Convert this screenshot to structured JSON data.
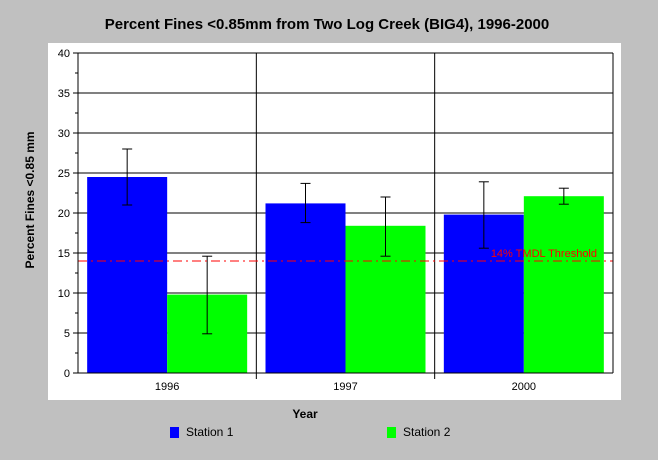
{
  "chart_data": {
    "type": "bar",
    "title": "Percent Fines <0.85mm from Two Log Creek (BIG4), 1996-2000",
    "xlabel": "Year",
    "ylabel": "Percent Fines <0.85 mm",
    "categories": [
      "1996",
      "1997",
      "2000"
    ],
    "ylim": [
      0,
      40
    ],
    "yticks": [
      "0",
      "5",
      "10",
      "15",
      "20",
      "25",
      "30",
      "35",
      "40"
    ],
    "grid": true,
    "legend_position": "bottom",
    "series": [
      {
        "name": "Station 1",
        "color": "#0000ff",
        "values": [
          24.5,
          21.2,
          19.8
        ],
        "error_low": [
          21.0,
          18.8,
          15.6
        ],
        "error_high": [
          28.0,
          23.7,
          23.9
        ]
      },
      {
        "name": "Station 2",
        "color": "#00ff00",
        "values": [
          9.8,
          18.4,
          22.1
        ],
        "error_low": [
          4.9,
          14.6,
          21.1
        ],
        "error_high": [
          14.6,
          22.0,
          23.1
        ]
      }
    ],
    "threshold": {
      "value": 14,
      "label": "14% TMDL Threshold",
      "color": "#ff0000"
    }
  }
}
